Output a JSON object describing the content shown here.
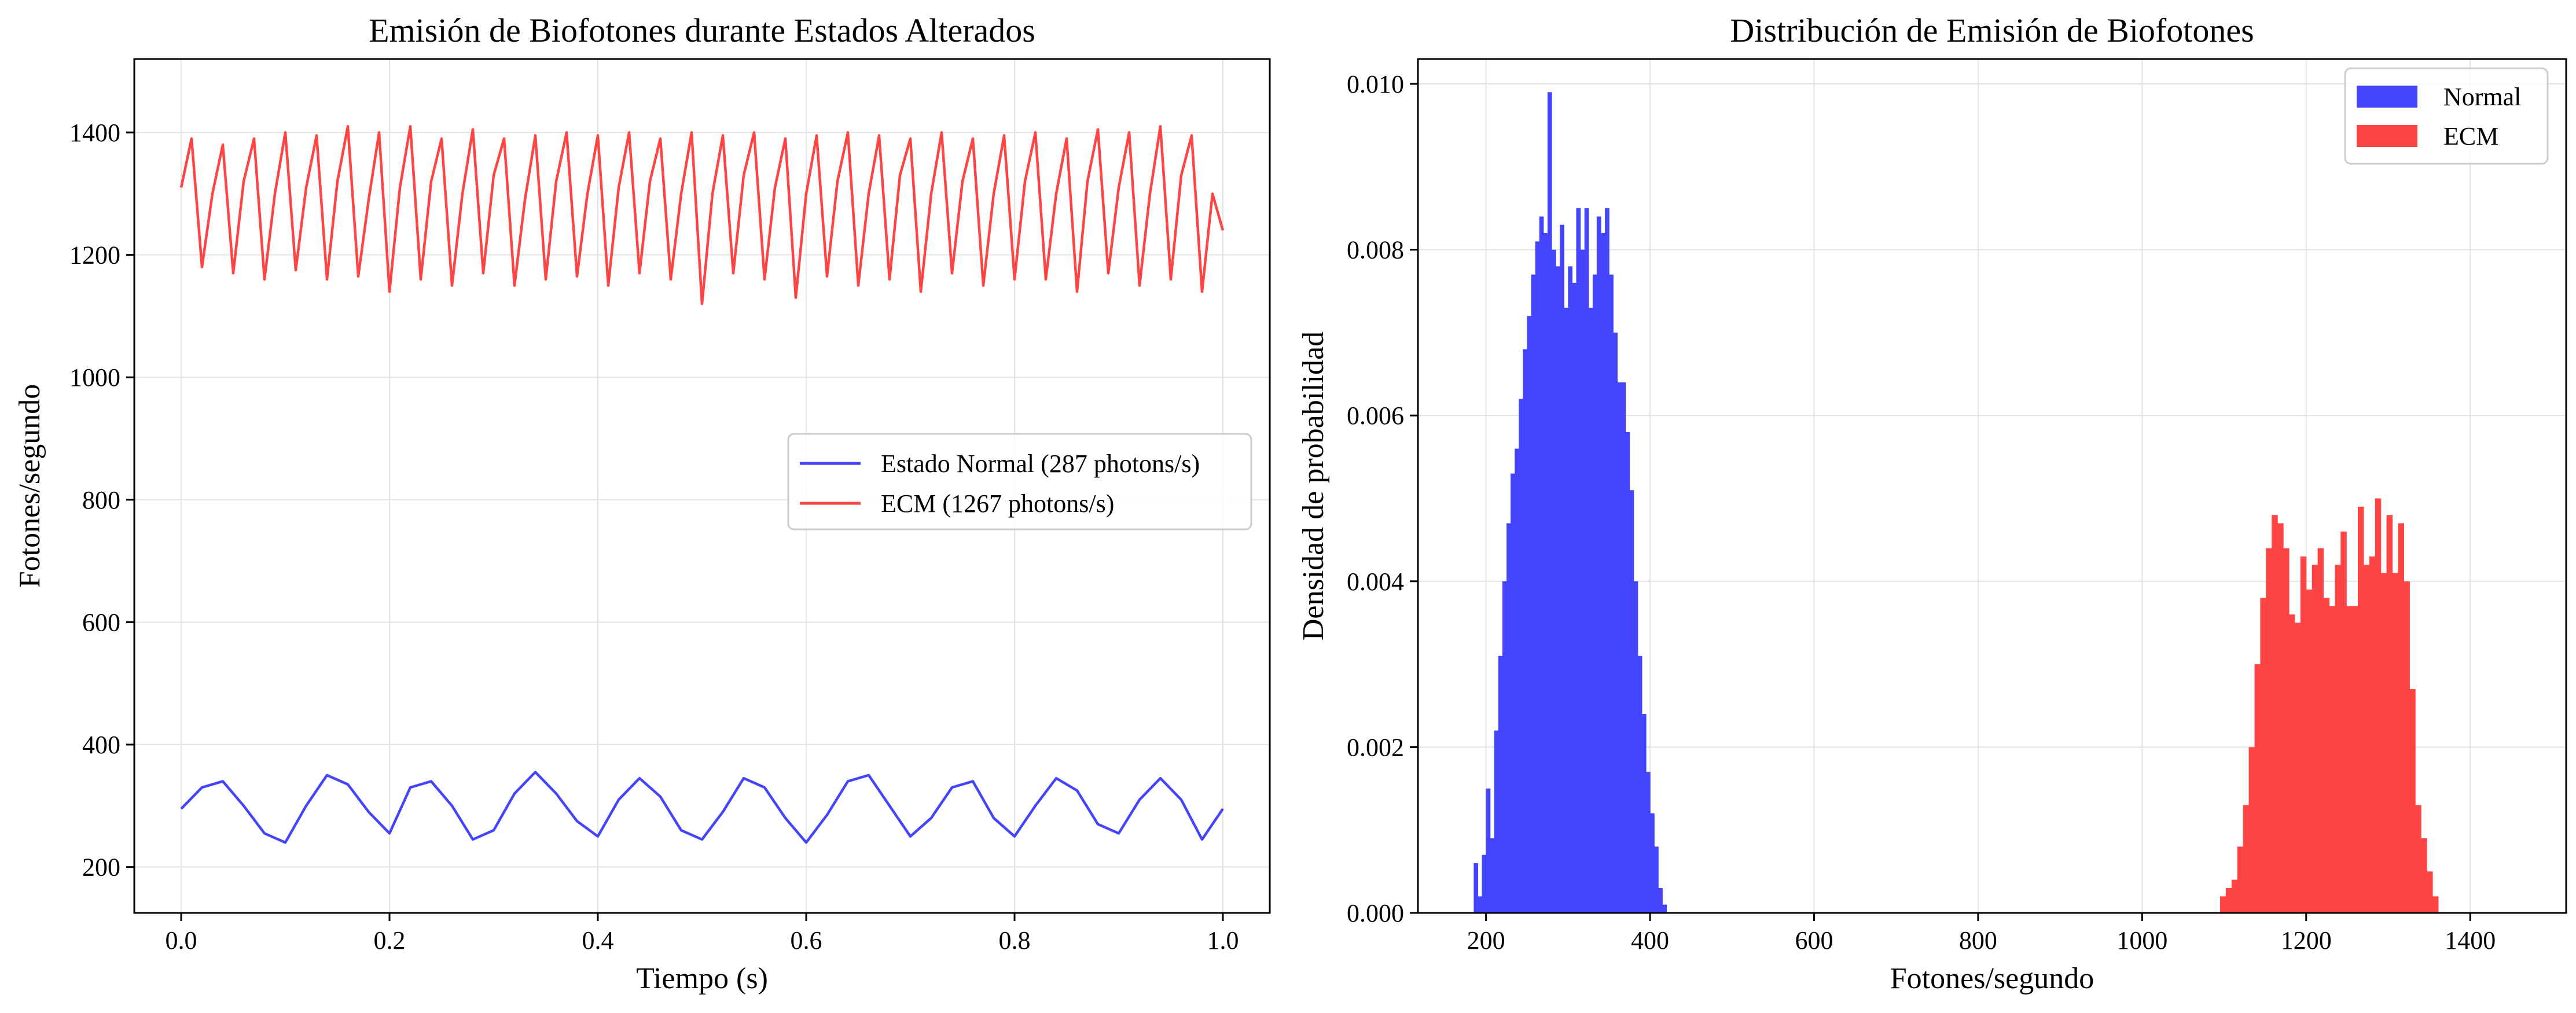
{
  "colors": {
    "normal": "#4444ff",
    "ecm": "#ff4444",
    "grid": "#e3e3e3",
    "axis": "#000000"
  },
  "chart_data": [
    {
      "type": "line",
      "title": "Emisión de Biofotones durante Estados Alterados",
      "xlabel": "Tiempo (s)",
      "ylabel": "Fotones/segundo",
      "xlim": [
        -0.045,
        1.045
      ],
      "ylim": [
        125,
        1520
      ],
      "xticks": [
        0.0,
        0.2,
        0.4,
        0.6,
        0.8,
        1.0
      ],
      "xtick_labels": [
        "0.0",
        "0.2",
        "0.4",
        "0.6",
        "0.8",
        "1.0"
      ],
      "yticks": [
        200,
        400,
        600,
        800,
        1000,
        1200,
        1400
      ],
      "ytick_labels": [
        "200",
        "400",
        "600",
        "800",
        "1000",
        "1200",
        "1400"
      ],
      "grid": true,
      "legend_position": "center-right",
      "series": [
        {
          "name": "Estado Normal (287 photons/s)",
          "color": "#4444ff",
          "x": [
            0.0,
            0.02,
            0.04,
            0.06,
            0.08,
            0.1,
            0.12,
            0.14,
            0.16,
            0.18,
            0.2,
            0.22,
            0.24,
            0.26,
            0.28,
            0.3,
            0.32,
            0.34,
            0.36,
            0.38,
            0.4,
            0.42,
            0.44,
            0.46,
            0.48,
            0.5,
            0.52,
            0.54,
            0.56,
            0.58,
            0.6,
            0.62,
            0.64,
            0.66,
            0.68,
            0.7,
            0.72,
            0.74,
            0.76,
            0.78,
            0.8,
            0.82,
            0.84,
            0.86,
            0.88,
            0.9,
            0.92,
            0.94,
            0.96,
            0.98,
            1.0
          ],
          "y": [
            295,
            330,
            340,
            300,
            255,
            240,
            300,
            350,
            335,
            290,
            255,
            330,
            340,
            300,
            245,
            260,
            320,
            355,
            320,
            275,
            250,
            310,
            345,
            315,
            260,
            245,
            290,
            345,
            330,
            280,
            240,
            285,
            340,
            350,
            300,
            250,
            280,
            330,
            340,
            280,
            250,
            300,
            345,
            325,
            270,
            255,
            310,
            345,
            310,
            245,
            295
          ]
        },
        {
          "name": "ECM (1267 photons/s)",
          "color": "#ff4444",
          "x": [
            0.0,
            0.01,
            0.02,
            0.03,
            0.04,
            0.05,
            0.06,
            0.07,
            0.08,
            0.09,
            0.1,
            0.11,
            0.12,
            0.13,
            0.14,
            0.15,
            0.16,
            0.17,
            0.18,
            0.19,
            0.2,
            0.21,
            0.22,
            0.23,
            0.24,
            0.25,
            0.26,
            0.27,
            0.28,
            0.29,
            0.3,
            0.31,
            0.32,
            0.33,
            0.34,
            0.35,
            0.36,
            0.37,
            0.38,
            0.39,
            0.4,
            0.41,
            0.42,
            0.43,
            0.44,
            0.45,
            0.46,
            0.47,
            0.48,
            0.49,
            0.5,
            0.51,
            0.52,
            0.53,
            0.54,
            0.55,
            0.56,
            0.57,
            0.58,
            0.59,
            0.6,
            0.61,
            0.62,
            0.63,
            0.64,
            0.65,
            0.66,
            0.67,
            0.68,
            0.69,
            0.7,
            0.71,
            0.72,
            0.73,
            0.74,
            0.75,
            0.76,
            0.77,
            0.78,
            0.79,
            0.8,
            0.81,
            0.82,
            0.83,
            0.84,
            0.85,
            0.86,
            0.87,
            0.88,
            0.89,
            0.9,
            0.91,
            0.92,
            0.93,
            0.94,
            0.95,
            0.96,
            0.97,
            0.98,
            0.99,
            1.0
          ],
          "y": [
            1310,
            1390,
            1180,
            1300,
            1380,
            1170,
            1320,
            1390,
            1160,
            1300,
            1400,
            1175,
            1310,
            1395,
            1160,
            1320,
            1410,
            1165,
            1290,
            1400,
            1140,
            1310,
            1410,
            1160,
            1320,
            1390,
            1150,
            1300,
            1405,
            1170,
            1330,
            1390,
            1150,
            1290,
            1395,
            1160,
            1320,
            1400,
            1165,
            1300,
            1395,
            1150,
            1310,
            1400,
            1170,
            1320,
            1390,
            1160,
            1300,
            1400,
            1120,
            1300,
            1395,
            1170,
            1330,
            1400,
            1160,
            1310,
            1390,
            1130,
            1300,
            1395,
            1165,
            1320,
            1400,
            1150,
            1300,
            1395,
            1160,
            1330,
            1390,
            1140,
            1300,
            1400,
            1170,
            1320,
            1390,
            1150,
            1300,
            1395,
            1160,
            1320,
            1400,
            1160,
            1300,
            1390,
            1140,
            1320,
            1405,
            1170,
            1310,
            1400,
            1150,
            1300,
            1410,
            1160,
            1330,
            1395,
            1140,
            1300,
            1240
          ]
        }
      ]
    },
    {
      "type": "histogram",
      "title": "Distribución de Emisión de Biofotones",
      "xlabel": "Fotones/segundo",
      "ylabel": "Densidad de probabilidad",
      "xlim": [
        117,
        1517
      ],
      "ylim": [
        0,
        0.0103
      ],
      "xticks": [
        200,
        400,
        600,
        800,
        1000,
        1200,
        1400
      ],
      "xtick_labels": [
        "200",
        "400",
        "600",
        "800",
        "1000",
        "1200",
        "1400"
      ],
      "yticks": [
        0.0,
        0.002,
        0.004,
        0.006,
        0.008,
        0.01
      ],
      "ytick_labels": [
        "0.000",
        "0.002",
        "0.004",
        "0.006",
        "0.008",
        "0.010"
      ],
      "grid": true,
      "legend_position": "upper right",
      "series": [
        {
          "name": "Normal",
          "color": "#4444ff",
          "bin_width": 5,
          "bin_start": 185,
          "densities": [
            0.0006,
            0.0002,
            0.0007,
            0.0015,
            0.0009,
            0.0022,
            0.0031,
            0.004,
            0.0047,
            0.0053,
            0.0056,
            0.0062,
            0.0068,
            0.0072,
            0.0077,
            0.0081,
            0.0084,
            0.0082,
            0.0099,
            0.008,
            0.0078,
            0.0083,
            0.0073,
            0.0078,
            0.0076,
            0.0085,
            0.008,
            0.0085,
            0.0073,
            0.0077,
            0.0084,
            0.0082,
            0.0085,
            0.0077,
            0.007,
            0.0064,
            0.0064,
            0.0058,
            0.0051,
            0.004,
            0.0031,
            0.0024,
            0.0017,
            0.0012,
            0.0008,
            0.0003,
            0.0001
          ]
        },
        {
          "name": "ECM",
          "color": "#ff4444",
          "bin_width": 7,
          "bin_start": 1095,
          "densities": [
            0.0002,
            0.0003,
            0.0004,
            0.0008,
            0.0013,
            0.002,
            0.003,
            0.0038,
            0.0044,
            0.0048,
            0.0047,
            0.0044,
            0.0036,
            0.0035,
            0.0043,
            0.0039,
            0.0042,
            0.0044,
            0.0038,
            0.0037,
            0.0042,
            0.0046,
            0.0037,
            0.0037,
            0.0049,
            0.0042,
            0.0043,
            0.005,
            0.0041,
            0.0048,
            0.0041,
            0.0047,
            0.004,
            0.0027,
            0.0013,
            0.0009,
            0.0005,
            0.0002
          ]
        }
      ]
    }
  ]
}
